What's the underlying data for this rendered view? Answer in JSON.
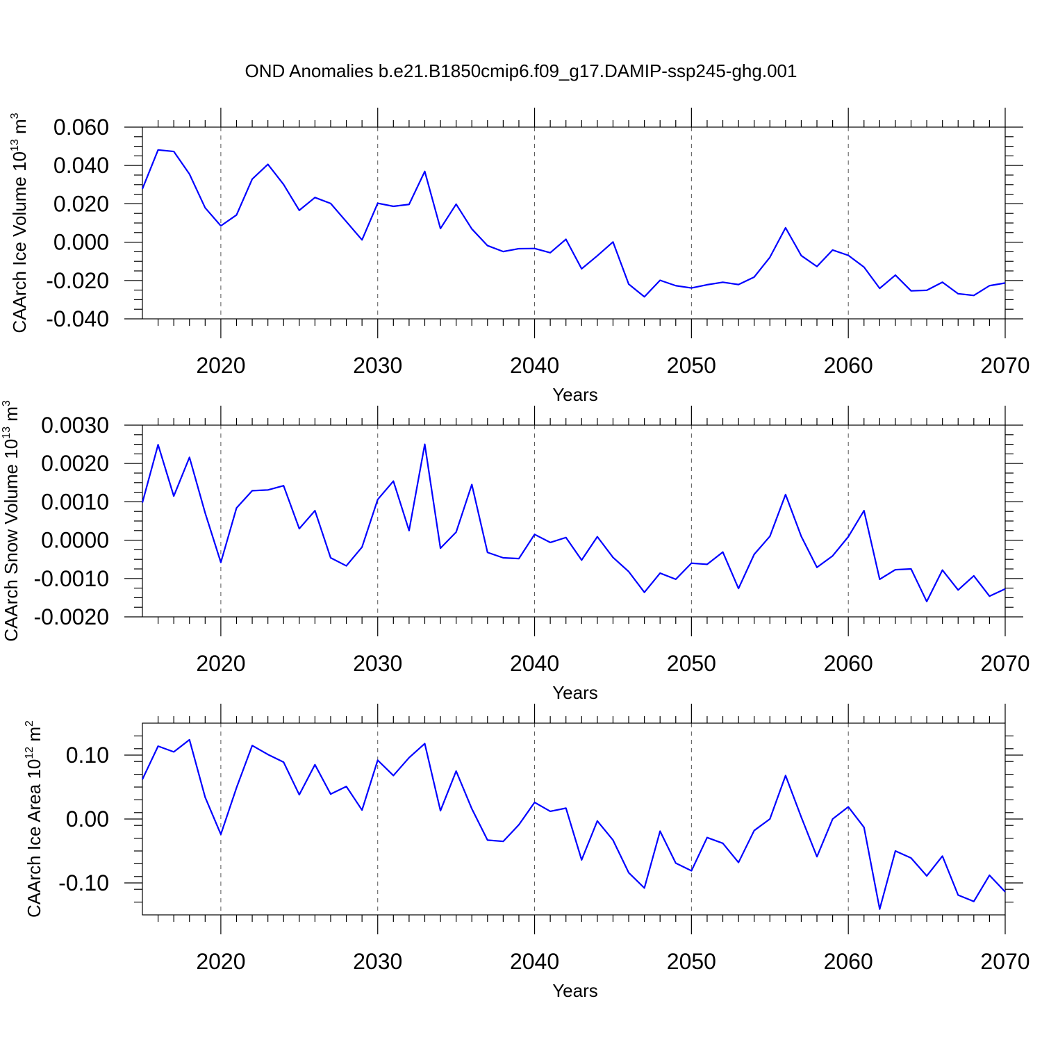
{
  "title": "OND Anomalies b.e21.B1850cmip6.f09_g17.DAMIP-ssp245-ghg.001",
  "colors": {
    "line": "#0000ff",
    "axes": "#000000"
  },
  "chart_data": [
    {
      "type": "line",
      "ylabel": "CAArch Ice Volume",
      "yunit_base": "10",
      "yunit_exp": "13",
      "yunit_tail": "m",
      "yunit_tail_exp": "3",
      "xlabel": "Years",
      "xlim": [
        2015,
        2070
      ],
      "ylim": [
        -0.04,
        0.06
      ],
      "xticks": [
        2020,
        2030,
        2040,
        2050,
        2060,
        2070
      ],
      "xtick_labels": [
        "2020",
        "2030",
        "2040",
        "2050",
        "2060",
        "2070"
      ],
      "yticks": [
        -0.04,
        -0.02,
        0.0,
        0.02,
        0.04,
        0.06
      ],
      "ytick_labels": [
        "-0.040",
        "-0.020",
        "0.000",
        "0.020",
        "0.040",
        "0.060"
      ],
      "yminor_step": 0.005,
      "x_start": 2015,
      "values": [
        0.0278,
        0.0481,
        0.0473,
        0.0355,
        0.0179,
        0.0085,
        0.0142,
        0.0329,
        0.0406,
        0.0301,
        0.0166,
        0.0233,
        0.0202,
        0.0107,
        0.0012,
        0.0203,
        0.0187,
        0.0197,
        0.0369,
        0.0071,
        0.0198,
        0.0069,
        -0.0018,
        -0.0049,
        -0.0034,
        -0.0033,
        -0.0055,
        0.0015,
        -0.0139,
        -0.0071,
        0.0001,
        -0.0219,
        -0.0285,
        -0.0199,
        -0.0227,
        -0.0239,
        -0.0222,
        -0.0209,
        -0.0221,
        -0.0182,
        -0.0079,
        0.0075,
        -0.007,
        -0.0127,
        -0.0041,
        -0.0069,
        -0.013,
        -0.0241,
        -0.0172,
        -0.0254,
        -0.0251,
        -0.0209,
        -0.0269,
        -0.0278,
        -0.0227,
        -0.0213
      ]
    },
    {
      "type": "line",
      "ylabel": "CAArch Snow Volume",
      "yunit_base": "10",
      "yunit_exp": "13",
      "yunit_tail": "m",
      "yunit_tail_exp": "3",
      "xlabel": "Years",
      "xlim": [
        2015,
        2070
      ],
      "ylim": [
        -0.002,
        0.003
      ],
      "xticks": [
        2020,
        2030,
        2040,
        2050,
        2060,
        2070
      ],
      "xtick_labels": [
        "2020",
        "2030",
        "2040",
        "2050",
        "2060",
        "2070"
      ],
      "yticks": [
        -0.002,
        -0.001,
        0.0,
        0.001,
        0.002,
        0.003
      ],
      "ytick_labels": [
        "-0.0020",
        "-0.0010",
        "0.0000",
        "0.0010",
        "0.0020",
        "0.0030"
      ],
      "yminor_step": 0.00025,
      "x_start": 2015,
      "values": [
        0.00098,
        0.00249,
        0.00115,
        0.00216,
        0.00071,
        -0.00058,
        0.00084,
        0.00129,
        0.00131,
        0.00142,
        0.0003,
        0.00077,
        -0.00046,
        -0.00067,
        -0.00018,
        0.00106,
        0.00154,
        0.00025,
        0.0025,
        -0.00021,
        0.00021,
        0.00145,
        -0.00032,
        -0.00046,
        -0.00048,
        0.00015,
        -6e-05,
        7e-05,
        -0.00052,
        9e-05,
        -0.00045,
        -0.00082,
        -0.00136,
        -0.00086,
        -0.00102,
        -0.0006,
        -0.00063,
        -0.00031,
        -0.00126,
        -0.00037,
        0.0001,
        0.00119,
        0.0001,
        -0.00071,
        -0.00041,
        9e-05,
        0.00077,
        -0.00102,
        -0.00077,
        -0.00075,
        -0.0016,
        -0.00078,
        -0.0013,
        -0.00093,
        -0.00146,
        -0.00127
      ]
    },
    {
      "type": "line",
      "ylabel": "CAArch Ice Area",
      "yunit_base": "10",
      "yunit_exp": "12",
      "yunit_tail": "m",
      "yunit_tail_exp": "2",
      "xlabel": "Years",
      "xlim": [
        2015,
        2070
      ],
      "ylim": [
        -0.15,
        0.15
      ],
      "xticks": [
        2020,
        2030,
        2040,
        2050,
        2060,
        2070
      ],
      "xtick_labels": [
        "2020",
        "2030",
        "2040",
        "2050",
        "2060",
        "2070"
      ],
      "yticks": [
        -0.1,
        0.0,
        0.1
      ],
      "ytick_labels": [
        "-0.10",
        "0.00",
        "0.10"
      ],
      "yminor_step": 0.02,
      "x_start": 2015,
      "values": [
        0.062,
        0.114,
        0.105,
        0.124,
        0.034,
        -0.024,
        0.049,
        0.115,
        0.101,
        0.089,
        0.038,
        0.085,
        0.039,
        0.051,
        0.014,
        0.092,
        0.068,
        0.096,
        0.118,
        0.013,
        0.075,
        0.016,
        -0.033,
        -0.035,
        -0.009,
        0.026,
        0.012,
        0.017,
        -0.064,
        -0.003,
        -0.033,
        -0.084,
        -0.108,
        -0.019,
        -0.069,
        -0.081,
        -0.029,
        -0.038,
        -0.068,
        -0.018,
        0.0,
        0.068,
        0.003,
        -0.059,
        0.0,
        0.019,
        -0.013,
        -0.141,
        -0.05,
        -0.061,
        -0.089,
        -0.058,
        -0.119,
        -0.129,
        -0.088,
        -0.114
      ]
    }
  ]
}
